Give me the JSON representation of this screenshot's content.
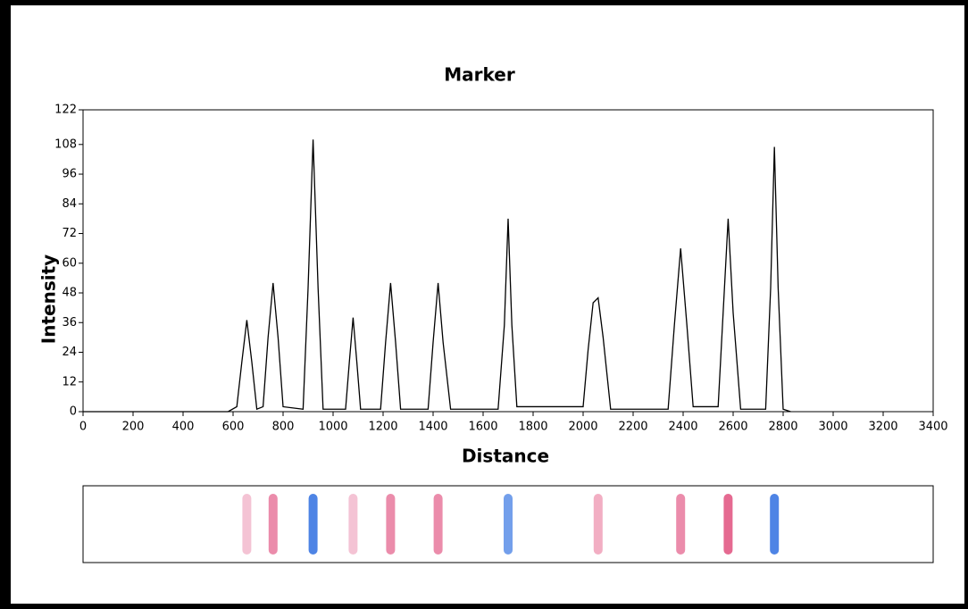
{
  "chart_data": {
    "type": "line",
    "title": "Marker",
    "x_label": "Distance",
    "y_label": "Intensity",
    "x": [
      0,
      580,
      615,
      635,
      655,
      675,
      695,
      720,
      740,
      760,
      780,
      800,
      880,
      900,
      920,
      940,
      960,
      1050,
      1065,
      1080,
      1095,
      1110,
      1190,
      1210,
      1230,
      1250,
      1270,
      1380,
      1400,
      1420,
      1440,
      1470,
      1660,
      1685,
      1700,
      1715,
      1735,
      2000,
      2020,
      2040,
      2060,
      2080,
      2110,
      2340,
      2365,
      2390,
      2415,
      2440,
      2540,
      2560,
      2580,
      2600,
      2630,
      2730,
      2750,
      2765,
      2780,
      2800,
      2830
    ],
    "series": [
      {
        "color": "#000000",
        "values": [
          0,
          0,
          2,
          20,
          37,
          20,
          1,
          2,
          30,
          52,
          30,
          2,
          1,
          50,
          110,
          50,
          1,
          1,
          20,
          38,
          20,
          1,
          1,
          28,
          52,
          28,
          1,
          1,
          28,
          52,
          28,
          1,
          1,
          35,
          78,
          35,
          2,
          2,
          25,
          44,
          46,
          30,
          1,
          1,
          35,
          66,
          35,
          2,
          2,
          40,
          78,
          40,
          1,
          1,
          50,
          107,
          50,
          1,
          0
        ]
      }
    ],
    "xlim": [
      0,
      3400
    ],
    "xticks": [
      0,
      200,
      400,
      600,
      800,
      1000,
      1200,
      1400,
      1600,
      1800,
      2000,
      2200,
      2400,
      2600,
      2800,
      3000,
      3200,
      3400
    ],
    "ylim": [
      0,
      122
    ],
    "yticks": [
      0,
      12,
      24,
      36,
      48,
      60,
      72,
      84,
      96,
      108,
      122
    ],
    "bands": {
      "x": [
        655,
        760,
        920,
        1080,
        1230,
        1420,
        1700,
        2060,
        2390,
        2580,
        2765
      ],
      "colors": [
        "#f2b8cc",
        "#e8789c",
        "#2f6fe0",
        "#f2b8cc",
        "#e8789c",
        "#e8789c",
        "#5a8ee8",
        "#f0a0b8",
        "#e8789c",
        "#e0507e",
        "#2f6fe0"
      ]
    }
  }
}
